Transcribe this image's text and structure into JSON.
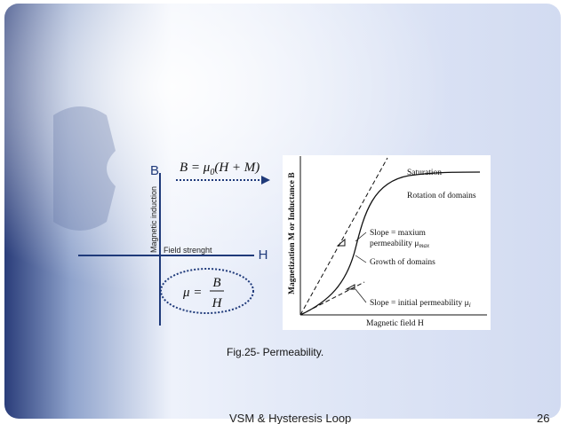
{
  "slide": {
    "diagram": {
      "b_label": "B",
      "h_label": "H",
      "y_axis_label": "Magnetic induction",
      "x_axis_label": "Field strenght",
      "equation": {
        "lhs": "B = μ",
        "sub": "0",
        "rhs": "(H + M)"
      },
      "permeability": {
        "lhs": "μ =",
        "numerator": "B",
        "denominator": "H"
      }
    },
    "figure": {
      "y_axis_label": "Magnetization M or Inductance B",
      "x_axis_label": "Magnetic field H",
      "saturation": "Saturation",
      "rotation": "Rotation of domains",
      "slope_max_line1": "Slope = maxium",
      "slope_max_line2": {
        "text": "permeability μ",
        "sub": "max"
      },
      "growth": "Growth of domains",
      "slope_initial": {
        "text": "Slope = initial permeability μ",
        "sub": "i"
      }
    },
    "caption": "Fig.25- Permeability.",
    "footer": {
      "title": "VSM & Hysteresis Loop",
      "page": "26"
    }
  }
}
